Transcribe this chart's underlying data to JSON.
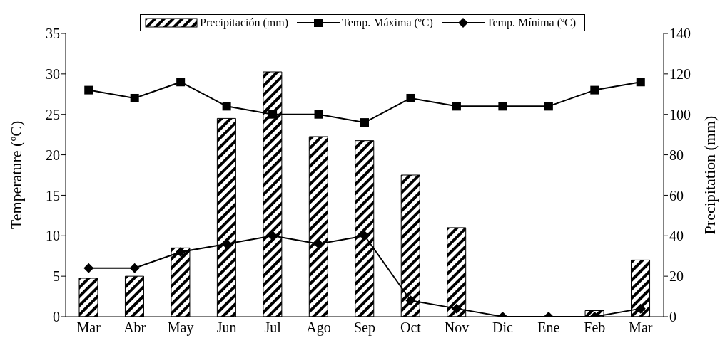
{
  "chart_data": {
    "type": "line",
    "categories": [
      "Mar",
      "Abr",
      "May",
      "Jun",
      "Jul",
      "Ago",
      "Sep",
      "Oct",
      "Nov",
      "Dic",
      "Ene",
      "Feb",
      "Mar"
    ],
    "series": [
      {
        "name": "Precipitación (mm)",
        "type": "bar",
        "axis": "y2",
        "color": "#000000",
        "values": [
          19,
          20,
          34,
          98,
          121,
          89,
          87,
          70,
          44,
          0,
          0,
          3,
          28
        ]
      },
      {
        "name": "Temp. Máxima (ºC)",
        "marker": "square",
        "color": "#000000",
        "values": [
          28,
          27,
          29,
          26,
          25,
          25,
          24,
          27,
          26,
          26,
          26,
          28,
          29
        ]
      },
      {
        "name": "Temp. Mínima (ºC)",
        "marker": "diamond",
        "color": "#000000",
        "values": [
          6,
          6,
          8,
          9,
          10,
          9,
          10,
          2,
          1,
          0,
          0,
          0,
          1
        ]
      }
    ],
    "ylabel": "Temperature (ºC)",
    "y2label": "Precipitation (mm)",
    "ylim": [
      0,
      35
    ],
    "yticks": [
      0,
      5,
      10,
      15,
      20,
      25,
      30,
      35
    ],
    "y2lim": [
      0,
      140
    ],
    "y2ticks": [
      0,
      20,
      40,
      60,
      80,
      100,
      120,
      140
    ],
    "grid": false,
    "legend": "top",
    "line_style": "solid"
  }
}
